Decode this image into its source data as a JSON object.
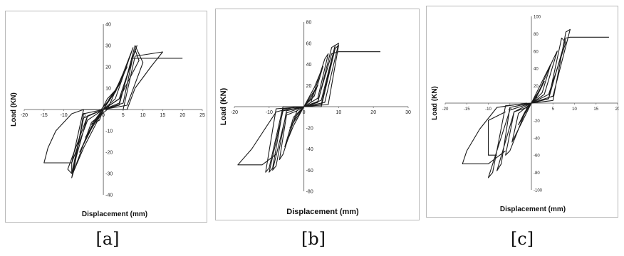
{
  "chart_data": [
    {
      "type": "line",
      "xlabel": "Displacement (mm)",
      "ylabel": "Load (KN)",
      "xlim": [
        -20,
        25
      ],
      "ylim": [
        -40,
        40
      ],
      "xticks": [
        -20,
        -15,
        -10,
        -5,
        0,
        5,
        10,
        15,
        20,
        25
      ],
      "yticks": [
        -40,
        -30,
        -20,
        -10,
        10,
        20,
        30,
        40
      ],
      "caption": "[a]",
      "loops": [
        {
          "x": [
            0,
            1.5,
            3,
            1,
            -1,
            -3,
            -1,
            0
          ],
          "y": [
            0,
            5,
            9,
            5,
            -2,
            -7,
            -5,
            0
          ]
        },
        {
          "x": [
            0,
            2.5,
            4.5,
            2,
            0,
            -2,
            -4.5,
            -2,
            0
          ],
          "y": [
            0,
            7,
            13,
            6,
            0,
            -6,
            -13,
            -5,
            0
          ]
        },
        {
          "x": [
            -1,
            3,
            6,
            3,
            0,
            -3,
            -6,
            -3,
            0
          ],
          "y": [
            -1,
            8,
            20,
            9,
            0,
            -8,
            -20,
            -9,
            0
          ]
        },
        {
          "x": [
            0,
            3,
            7.5,
            5,
            1,
            -3,
            -7.5,
            -5,
            0
          ],
          "y": [
            0,
            5,
            29,
            17,
            0,
            -6,
            -29,
            -18,
            0
          ]
        },
        {
          "x": [
            0,
            4,
            8,
            9,
            4,
            0,
            -4,
            -8,
            -8,
            -4,
            0
          ],
          "y": [
            0,
            3,
            28,
            23,
            5,
            0,
            -3,
            -30,
            -25,
            -5,
            0
          ]
        },
        {
          "x": [
            0,
            4,
            8,
            10,
            6,
            0,
            -5,
            -7.5,
            -8,
            -5,
            0
          ],
          "y": [
            0,
            2,
            30,
            22,
            2,
            0,
            -2,
            -29,
            -32,
            -4,
            0
          ]
        },
        {
          "x": [
            0,
            5,
            7.5,
            8.5,
            4,
            0,
            -5,
            -8,
            -9,
            -4,
            0
          ],
          "y": [
            0,
            3,
            25,
            30,
            5,
            0,
            -4,
            -30,
            -28,
            -3,
            0
          ]
        },
        {
          "x": [
            0,
            5,
            8,
            15,
            12,
            8,
            6,
            0,
            -5,
            -8,
            -15,
            -14,
            -12,
            -8,
            -5,
            0
          ],
          "y": [
            0,
            0,
            25,
            27,
            20,
            10,
            0,
            0,
            0,
            -25,
            -25,
            -18,
            -10,
            -2,
            0,
            0
          ]
        },
        {
          "x": [
            7,
            20
          ],
          "y": [
            24,
            24
          ]
        }
      ]
    },
    {
      "type": "line",
      "xlabel": "Displacement (mm)",
      "ylabel": "Load (KN)",
      "xlim": [
        -20,
        30
      ],
      "ylim": [
        -80,
        80
      ],
      "xticks": [
        -20,
        -10,
        0,
        10,
        20,
        30
      ],
      "yticks": [
        -80,
        -60,
        -40,
        -20,
        20,
        40,
        60,
        80
      ],
      "caption": "[b]",
      "loops": [
        {
          "x": [
            0,
            2,
            4,
            2,
            0,
            -2,
            -4,
            -2,
            0
          ],
          "y": [
            0,
            8,
            20,
            10,
            0,
            -8,
            -20,
            -10,
            0
          ]
        },
        {
          "x": [
            0,
            3,
            5.5,
            3,
            0,
            -3,
            -5.5,
            -3,
            0
          ],
          "y": [
            0,
            10,
            38,
            18,
            0,
            -10,
            -38,
            -18,
            0
          ]
        },
        {
          "x": [
            0,
            4,
            7,
            6,
            2,
            -2,
            -5,
            -7,
            -6,
            -2,
            0
          ],
          "y": [
            0,
            8,
            50,
            45,
            4,
            -4,
            -8,
            -50,
            -45,
            -4,
            0
          ]
        },
        {
          "x": [
            0,
            4,
            8,
            9,
            5,
            0,
            -5,
            -8,
            -9,
            -5,
            0
          ],
          "y": [
            0,
            4,
            56,
            58,
            6,
            0,
            -4,
            -56,
            -60,
            -6,
            0
          ]
        },
        {
          "x": [
            0,
            5,
            9,
            10,
            6,
            0,
            -6,
            -9,
            -10,
            -6,
            0
          ],
          "y": [
            0,
            2,
            58,
            60,
            4,
            0,
            -2,
            -58,
            -62,
            -4,
            0
          ]
        },
        {
          "x": [
            0,
            5,
            9,
            10,
            7,
            0,
            -6,
            -10,
            -11,
            -8,
            0
          ],
          "y": [
            0,
            0,
            55,
            58,
            2,
            0,
            0,
            -58,
            -62,
            -2,
            0
          ]
        },
        {
          "x": [
            0,
            4,
            8,
            10,
            22
          ],
          "y": [
            0,
            5,
            50,
            52,
            52
          ]
        },
        {
          "x": [
            -2,
            -8,
            -15,
            -19,
            -12,
            -8
          ],
          "y": [
            0,
            -5,
            -40,
            -55,
            -55,
            -45
          ]
        }
      ]
    },
    {
      "type": "line",
      "xlabel": "Displacement (mm)",
      "ylabel": "Load (KN)",
      "xlim": [
        -20,
        20
      ],
      "ylim": [
        -100,
        100
      ],
      "xticks": [
        -20,
        -15,
        -10,
        -5,
        5,
        10,
        15,
        20
      ],
      "yticks": [
        -100,
        -80,
        -60,
        -40,
        -20,
        20,
        40,
        60,
        80,
        100
      ],
      "caption": "[c]",
      "loops": [
        {
          "x": [
            0,
            1.5,
            3,
            1.5,
            0,
            -1.5,
            -3,
            -1.5,
            0
          ],
          "y": [
            0,
            10,
            25,
            12,
            0,
            -10,
            -25,
            -12,
            0
          ]
        },
        {
          "x": [
            0,
            2.5,
            4.5,
            3,
            0,
            -3,
            -4.5,
            -3,
            0
          ],
          "y": [
            0,
            12,
            45,
            30,
            0,
            -12,
            -45,
            -30,
            0
          ]
        },
        {
          "x": [
            0,
            3,
            6,
            5,
            1,
            -1,
            -4,
            -6,
            -5,
            -1,
            0
          ],
          "y": [
            0,
            10,
            60,
            50,
            5,
            -5,
            -10,
            -60,
            -55,
            -5,
            0
          ]
        },
        {
          "x": [
            0,
            4,
            7,
            8,
            4,
            0,
            -5,
            -7,
            -8,
            -4,
            0
          ],
          "y": [
            0,
            5,
            75,
            70,
            10,
            0,
            -5,
            -70,
            -78,
            -10,
            0
          ]
        },
        {
          "x": [
            0,
            5,
            8,
            9,
            5,
            0,
            -6,
            -9,
            -10,
            -5,
            0
          ],
          "y": [
            0,
            3,
            82,
            85,
            8,
            0,
            -3,
            -80,
            -86,
            -8,
            0
          ]
        },
        {
          "x": [
            0,
            4,
            8,
            9,
            18
          ],
          "y": [
            0,
            5,
            75,
            76,
            76
          ]
        },
        {
          "x": [
            -1,
            -8,
            -12,
            -15,
            -16,
            -10,
            -6
          ],
          "y": [
            0,
            -5,
            -30,
            -55,
            -70,
            -70,
            -55
          ]
        },
        {
          "x": [
            -6,
            -10,
            -10,
            -8
          ],
          "y": [
            -10,
            -20,
            -60,
            -60
          ]
        }
      ]
    }
  ]
}
